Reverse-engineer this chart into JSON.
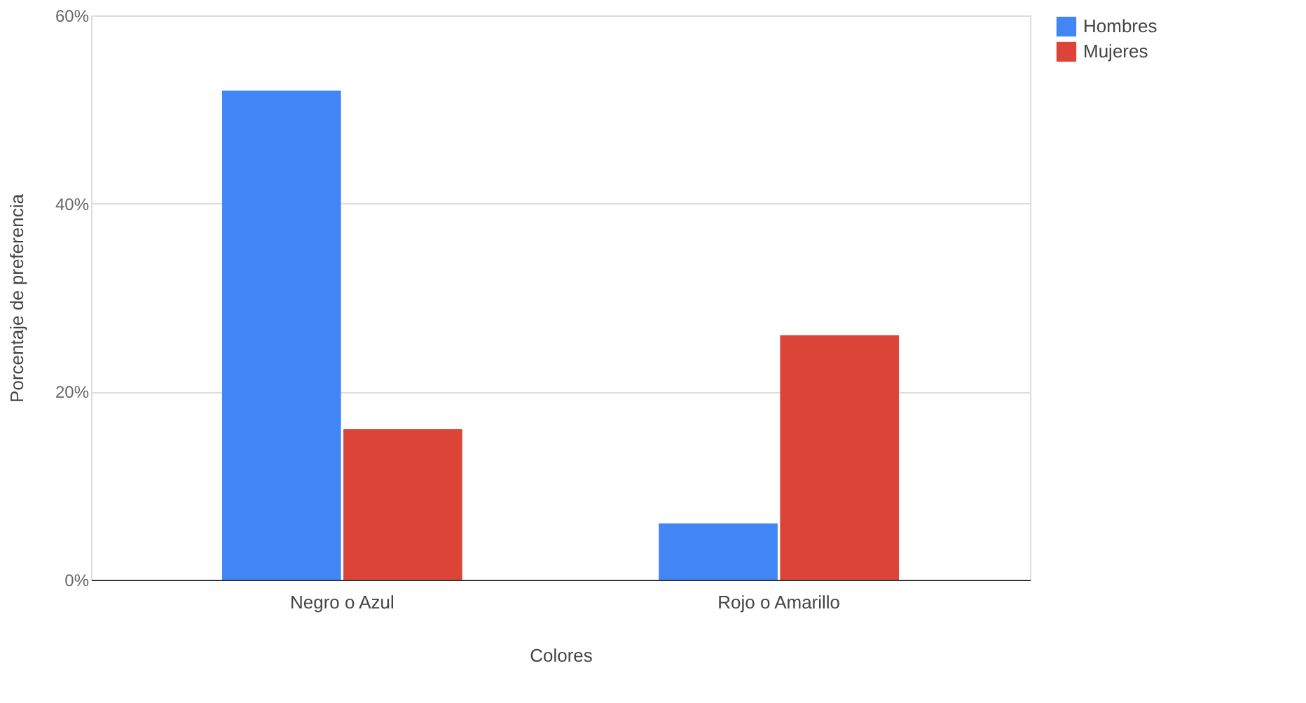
{
  "chart_data": {
    "type": "bar",
    "xlabel": "Colores",
    "ylabel": "Porcentaje de preferencia",
    "categories": [
      "Negro o Azul",
      "Rojo o Amarillo"
    ],
    "series": [
      {
        "name": "Hombres",
        "color": "#4285f4",
        "values": [
          52,
          6
        ]
      },
      {
        "name": "Mujeres",
        "color": "#db4437",
        "values": [
          16,
          26
        ]
      }
    ],
    "ylim": [
      0,
      60
    ],
    "yticks": [
      {
        "value": 0,
        "label": "0%"
      },
      {
        "value": 20,
        "label": "20%"
      },
      {
        "value": 40,
        "label": "40%"
      },
      {
        "value": 60,
        "label": "60%"
      }
    ],
    "grid": "y",
    "legend": "top right"
  }
}
